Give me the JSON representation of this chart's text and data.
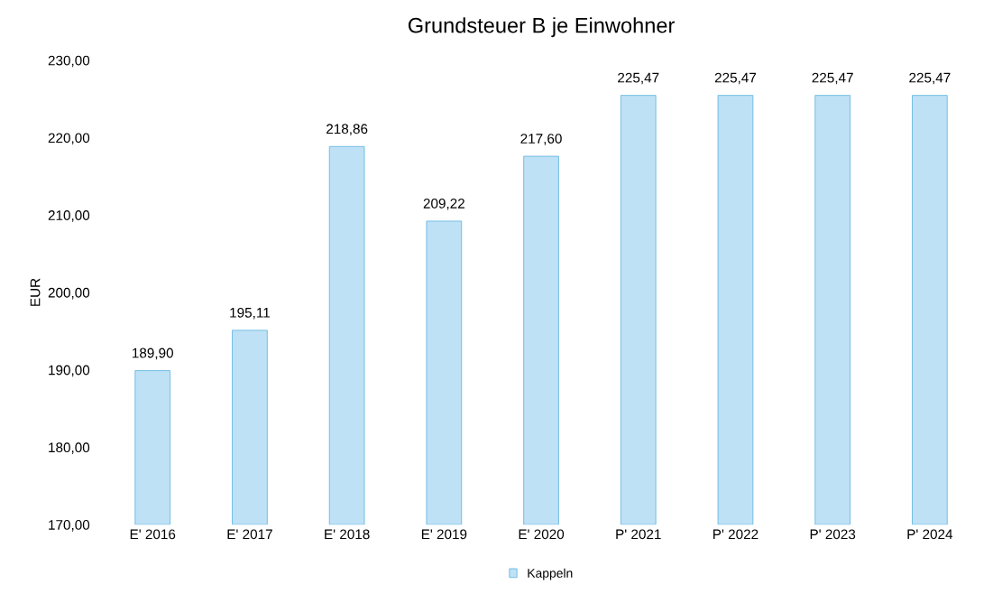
{
  "chart_data": {
    "type": "bar",
    "title": "Grundsteuer B je Einwohner",
    "ylabel": "EUR",
    "categories": [
      "E' 2016",
      "E' 2017",
      "E' 2018",
      "E' 2019",
      "E' 2020",
      "P' 2021",
      "P' 2022",
      "P' 2023",
      "P' 2024"
    ],
    "series": [
      {
        "name": "Kappeln",
        "color": "#bfe1f6",
        "values": [
          189.9,
          195.11,
          218.86,
          209.22,
          217.6,
          225.47,
          225.47,
          225.47,
          225.47
        ],
        "value_labels": [
          "189,90",
          "195,11",
          "218,86",
          "209,22",
          "217,60",
          "225,47",
          "225,47",
          "225,47",
          "225,47"
        ]
      }
    ],
    "ylim": [
      170,
      230
    ],
    "yticks": [
      {
        "value": 170,
        "label": "170,00"
      },
      {
        "value": 180,
        "label": "180,00"
      },
      {
        "value": 190,
        "label": "190,00"
      },
      {
        "value": 200,
        "label": "200,00"
      },
      {
        "value": 210,
        "label": "210,00"
      },
      {
        "value": 220,
        "label": "220,00"
      },
      {
        "value": 230,
        "label": "230,00"
      }
    ],
    "grid": false,
    "legend": "bottom"
  }
}
